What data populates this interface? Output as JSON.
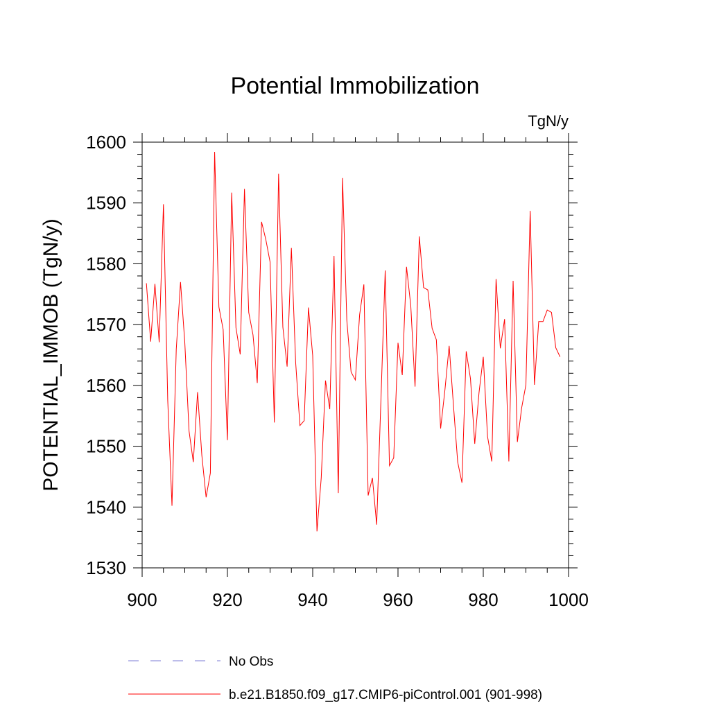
{
  "chart_data": {
    "type": "line",
    "title": "Potential Immobilization",
    "units_label": "TgN/y",
    "ylabel": "POTENTIAL_IMMOB  (TgN/y)",
    "xlabel": "",
    "xlim": [
      900,
      1000
    ],
    "ylim": [
      1530,
      1600
    ],
    "x_ticks": [
      "900",
      "920",
      "940",
      "960",
      "980",
      "1000"
    ],
    "y_ticks": [
      "1530",
      "1540",
      "1550",
      "1560",
      "1570",
      "1580",
      "1590",
      "1600"
    ],
    "grid": false,
    "legend": [
      {
        "label": "No Obs",
        "style": "dashed",
        "color": "#7b7bd6"
      },
      {
        "label": "b.e21.B1850.f09_g17.CMIP6-piControl.001 (901-998)",
        "style": "solid",
        "color": "#ff0000"
      }
    ],
    "series": [
      {
        "name": "b.e21.B1850.f09_g17.CMIP6-piControl.001 (901-998)",
        "color": "#ff0000",
        "x_start": 901,
        "values": [
          1576.8,
          1567.2,
          1576.7,
          1567.1,
          1589.8,
          1557.6,
          1540.2,
          1565.9,
          1577.0,
          1567.1,
          1552.5,
          1547.4,
          1558.9,
          1548.5,
          1541.6,
          1545.6,
          1598.4,
          1572.9,
          1569.2,
          1551.0,
          1591.7,
          1569.5,
          1565.1,
          1592.3,
          1572.0,
          1568.3,
          1560.4,
          1586.9,
          1584.0,
          1580.3,
          1553.9,
          1594.8,
          1569.6,
          1563.1,
          1582.6,
          1563.8,
          1553.4,
          1554.2,
          1572.8,
          1564.9,
          1536.0,
          1544.8,
          1560.8,
          1556.1,
          1581.3,
          1542.3,
          1594.1,
          1570.7,
          1562.2,
          1560.9,
          1571.6,
          1576.6,
          1541.9,
          1544.8,
          1537.1,
          1557.6,
          1578.9,
          1546.8,
          1548.1,
          1567.0,
          1561.7,
          1579.5,
          1573.1,
          1559.8,
          1584.5,
          1576.1,
          1575.7,
          1569.4,
          1567.5,
          1552.9,
          1559.2,
          1566.5,
          1556.8,
          1547.4,
          1544.0,
          1565.6,
          1561.1,
          1550.4,
          1558.8,
          1564.7,
          1551.6,
          1547.5,
          1577.5,
          1566.1,
          1570.9,
          1547.5,
          1577.2,
          1550.7,
          1556.3,
          1560.1,
          1588.7,
          1560.1,
          1570.5,
          1570.5,
          1572.4,
          1572.0,
          1566.2,
          1564.7
        ]
      }
    ]
  }
}
